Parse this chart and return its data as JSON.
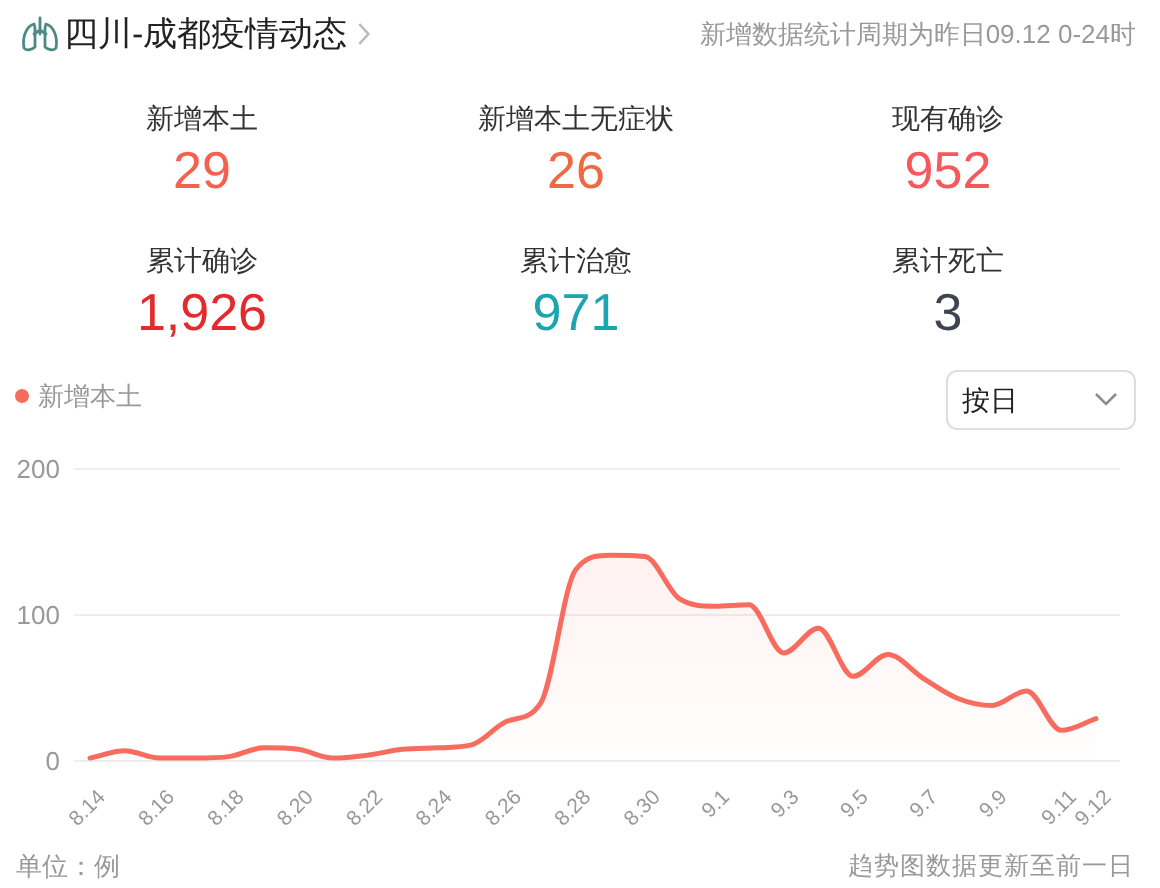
{
  "chart_data": [
    {
      "type": "other",
      "title": "四川-成都疫情动态",
      "subtitle": "新增数据统计周期为昨日09.12 0-24时",
      "annotations": [
        "新增本土",
        "29",
        "新增本土无症状",
        "26",
        "现有确诊",
        "952",
        "累计确诊",
        "1,926",
        "累计治愈",
        "971",
        "累计死亡",
        "3"
      ]
    },
    {
      "type": "area",
      "categories": [
        "8.14",
        null,
        "8.16",
        null,
        "8.18",
        null,
        "8.20",
        null,
        "8.22",
        null,
        "8.24",
        null,
        "8.26",
        null,
        "8.28",
        null,
        "8.30",
        null,
        "9.1",
        null,
        "9.3",
        null,
        "9.5",
        null,
        "9.7",
        null,
        "9.9",
        null,
        "9.11",
        "9.12"
      ],
      "series": [
        {
          "name": "新增本土",
          "color": "#f76c5e",
          "values": [
            2,
            7,
            2,
            2,
            3,
            9,
            8,
            2,
            4,
            8,
            9,
            11,
            27,
            40,
            131,
            141,
            140,
            111,
            106,
            107,
            74,
            91,
            58,
            73,
            57,
            43,
            38,
            48,
            21,
            29
          ]
        }
      ],
      "ylim": [
        0,
        200
      ],
      "yticks": [
        0,
        100,
        200
      ],
      "grid": "y",
      "legend": "top left",
      "marker": "none",
      "annotations": [
        "按日",
        "单位：例",
        "趋势图数据更新至前一日"
      ]
    }
  ]
}
